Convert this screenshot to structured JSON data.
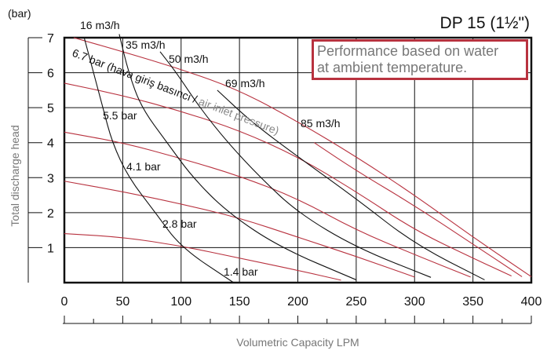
{
  "chart_data": {
    "type": "line",
    "title": "DP 15 (1½\")",
    "note": [
      "Performance based on water",
      "at ambient temperature."
    ],
    "xlabel": "Volumetric Capacity LPM",
    "ylabel": "Total discharge head",
    "yunit": "(bar)",
    "xlim": [
      0,
      400
    ],
    "ylim": [
      0,
      7
    ],
    "xticks": [
      0,
      50,
      100,
      150,
      200,
      250,
      300,
      350,
      400
    ],
    "yticks": [
      1,
      2,
      3,
      4,
      5,
      6,
      7
    ],
    "grid": true,
    "annotation": {
      "main": "6.7 bar (hava giriş basıncı / ",
      "secondary": "air inlet pressure)"
    },
    "colors": {
      "pressure": "#b8323f",
      "flow": "#111111",
      "grid": "#111111",
      "note_border": "#b8323f"
    },
    "pressure_series": [
      {
        "name": "1.4 bar",
        "points": [
          [
            0,
            1.4
          ],
          [
            50,
            1.3
          ],
          [
            100,
            1.05
          ],
          [
            150,
            0.7
          ],
          [
            200,
            0.35
          ],
          [
            237,
            0.07
          ]
        ]
      },
      {
        "name": "2.8 bar",
        "points": [
          [
            0,
            2.9
          ],
          [
            50,
            2.6
          ],
          [
            100,
            2.25
          ],
          [
            150,
            1.85
          ],
          [
            200,
            1.3
          ],
          [
            250,
            0.75
          ],
          [
            300,
            0.16
          ]
        ]
      },
      {
        "name": "4.1 bar",
        "points": [
          [
            0,
            4.3
          ],
          [
            50,
            4.0
          ],
          [
            100,
            3.55
          ],
          [
            150,
            3.05
          ],
          [
            200,
            2.4
          ],
          [
            250,
            1.5
          ],
          [
            300,
            0.8
          ],
          [
            348,
            0.16
          ]
        ]
      },
      {
        "name": "5.5 bar",
        "points": [
          [
            0,
            5.7
          ],
          [
            50,
            5.35
          ],
          [
            100,
            4.9
          ],
          [
            150,
            4.35
          ],
          [
            200,
            3.6
          ],
          [
            250,
            2.6
          ],
          [
            300,
            1.5
          ],
          [
            350,
            0.7
          ],
          [
            383,
            0.19
          ]
        ]
      },
      {
        "name": "6.7 bar",
        "points": [
          [
            8,
            7
          ],
          [
            50,
            6.6
          ],
          [
            100,
            6.1
          ],
          [
            150,
            5.5
          ],
          [
            200,
            4.6
          ],
          [
            250,
            3.6
          ],
          [
            300,
            2.5
          ],
          [
            350,
            1.3
          ],
          [
            400,
            0.17
          ]
        ]
      }
    ],
    "flow_series": [
      {
        "name": "16 m3/h",
        "points": [
          [
            17,
            7
          ],
          [
            25,
            6
          ],
          [
            33,
            5
          ],
          [
            41,
            4
          ],
          [
            55,
            3
          ],
          [
            78,
            2
          ],
          [
            100,
            1
          ],
          [
            145,
            0
          ]
        ]
      },
      {
        "name": "35 m3/h",
        "points": [
          [
            47,
            7.1
          ],
          [
            55,
            6
          ],
          [
            66,
            5
          ],
          [
            88,
            4
          ],
          [
            110,
            3
          ],
          [
            140,
            2
          ],
          [
            185,
            1
          ],
          [
            250,
            0.08
          ]
        ]
      },
      {
        "name": "50 m3/h",
        "points": [
          [
            82,
            6.6
          ],
          [
            96,
            6
          ],
          [
            116,
            5
          ],
          [
            140,
            4
          ],
          [
            168,
            3
          ],
          [
            200,
            2
          ],
          [
            250,
            1
          ],
          [
            314,
            0.15
          ]
        ]
      },
      {
        "name": "69 m3/h",
        "points": [
          [
            131,
            5.5
          ],
          [
            160,
            4.6
          ],
          [
            200,
            3.6
          ],
          [
            250,
            2.4
          ],
          [
            300,
            1.1
          ],
          [
            360,
            0.08
          ]
        ]
      },
      {
        "name": "85 m3/h",
        "points": [
          [
            214,
            4.0
          ],
          [
            250,
            3.2
          ],
          [
            300,
            2.2
          ],
          [
            350,
            1.1
          ],
          [
            392,
            0.17
          ]
        ]
      }
    ]
  }
}
